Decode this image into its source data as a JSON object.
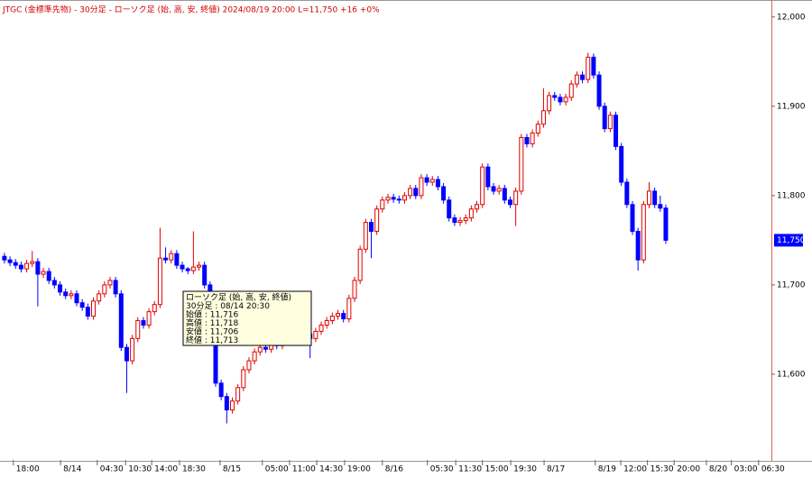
{
  "chart_data": {
    "type": "candlestick",
    "title": "JTGC (金標準先物) - 30分足 - ローソク足 (始, 高, 安, 終値)  2024/08/19 20:00 L=11,750 +16 +0%",
    "up_color": "#e00000",
    "down_color": "#0000ff",
    "open": [
      11732,
      11728,
      11725,
      11722,
      11718,
      11724,
      11726,
      11712,
      11715,
      11705,
      11700,
      11692,
      11688,
      11690,
      11680,
      11675,
      11665,
      11682,
      11690,
      11700,
      11705,
      11690,
      11630,
      11615,
      11640,
      11660,
      11655,
      11670,
      11678,
      11730,
      11728,
      11735,
      11722,
      11718,
      11716,
      11720,
      11722,
      11700,
      11640,
      11590,
      11575,
      11560,
      11570,
      11585,
      11605,
      11615,
      11625,
      11630,
      11628,
      11635,
      11632,
      11638,
      11640,
      11642,
      11640,
      11645,
      11640,
      11648,
      11655,
      11660,
      11665,
      11668,
      11662,
      11685,
      11705,
      11740,
      11770,
      11760,
      11785,
      11795,
      11798,
      11796,
      11795,
      11800,
      11808,
      11800,
      11820,
      11815,
      11818,
      11810,
      11795,
      11775,
      11770,
      11772,
      11775,
      11785,
      11790,
      11832,
      11810,
      11805,
      11808,
      11795,
      11790,
      11805,
      11865,
      11858,
      11870,
      11880,
      11895,
      11912,
      11910,
      11905,
      11910,
      11925,
      11935,
      11930,
      11955,
      11935,
      11900,
      11875,
      11890,
      11855,
      11815,
      11790,
      11760,
      11728,
      11790,
      11805,
      11790,
      11786
    ],
    "high": [
      11736,
      11732,
      11729,
      11726,
      11728,
      11738,
      11730,
      11719,
      11719,
      11709,
      11704,
      11696,
      11694,
      11694,
      11684,
      11679,
      11686,
      11694,
      11704,
      11709,
      11709,
      11694,
      11634,
      11644,
      11664,
      11664,
      11674,
      11682,
      11764,
      11742,
      11739,
      11739,
      11726,
      11720,
      11760,
      11726,
      11726,
      11704,
      11644,
      11594,
      11579,
      11574,
      11589,
      11609,
      11619,
      11629,
      11634,
      11634,
      11639,
      11639,
      11642,
      11644,
      11646,
      11646,
      11649,
      11649,
      11652,
      11659,
      11664,
      11669,
      11672,
      11672,
      11689,
      11709,
      11744,
      11774,
      11774,
      11789,
      11799,
      11802,
      11802,
      11800,
      11804,
      11812,
      11812,
      11824,
      11824,
      11822,
      11822,
      11814,
      11799,
      11779,
      11776,
      11779,
      11789,
      11794,
      11836,
      11836,
      11814,
      11812,
      11812,
      11799,
      11809,
      11869,
      11869,
      11874,
      11884,
      11920,
      11916,
      11916,
      11914,
      11914,
      11929,
      11939,
      11939,
      11960,
      11959,
      11939,
      11904,
      11894,
      11894,
      11859,
      11819,
      11794,
      11764,
      11794,
      11815,
      11809,
      11800,
      11790
    ],
    "low": [
      11724,
      11721,
      11718,
      11714,
      11714,
      11720,
      11676,
      11708,
      11701,
      11696,
      11688,
      11684,
      11684,
      11676,
      11671,
      11661,
      11661,
      11678,
      11686,
      11696,
      11686,
      11626,
      11579,
      11611,
      11636,
      11651,
      11651,
      11666,
      11674,
      11724,
      11724,
      11718,
      11714,
      11712,
      11712,
      11716,
      11696,
      11636,
      11586,
      11571,
      11545,
      11556,
      11566,
      11581,
      11601,
      11611,
      11621,
      11624,
      11624,
      11628,
      11628,
      11634,
      11636,
      11636,
      11636,
      11618,
      11636,
      11644,
      11651,
      11656,
      11661,
      11658,
      11658,
      11681,
      11701,
      11736,
      11730,
      11756,
      11781,
      11791,
      11792,
      11791,
      11791,
      11796,
      11796,
      11796,
      11811,
      11811,
      11806,
      11791,
      11771,
      11766,
      11766,
      11768,
      11771,
      11781,
      11786,
      11806,
      11801,
      11801,
      11791,
      11786,
      11766,
      11801,
      11854,
      11854,
      11866,
      11876,
      11891,
      11906,
      11901,
      11901,
      11906,
      11921,
      11926,
      11926,
      11931,
      11896,
      11871,
      11871,
      11851,
      11811,
      11786,
      11756,
      11716,
      11724,
      11786,
      11786,
      11782,
      11746
    ],
    "close": [
      11728,
      11725,
      11722,
      11718,
      11724,
      11726,
      11712,
      11715,
      11705,
      11700,
      11692,
      11688,
      11690,
      11680,
      11675,
      11665,
      11682,
      11690,
      11700,
      11705,
      11690,
      11630,
      11615,
      11640,
      11660,
      11655,
      11670,
      11678,
      11730,
      11728,
      11735,
      11722,
      11718,
      11716,
      11720,
      11722,
      11700,
      11640,
      11590,
      11575,
      11560,
      11570,
      11585,
      11605,
      11615,
      11625,
      11630,
      11628,
      11635,
      11632,
      11638,
      11640,
      11642,
      11640,
      11645,
      11640,
      11648,
      11655,
      11660,
      11665,
      11668,
      11662,
      11685,
      11705,
      11740,
      11770,
      11760,
      11785,
      11795,
      11798,
      11796,
      11795,
      11800,
      11808,
      11800,
      11820,
      11815,
      11818,
      11810,
      11795,
      11775,
      11770,
      11772,
      11775,
      11785,
      11790,
      11832,
      11810,
      11805,
      11808,
      11795,
      11790,
      11805,
      11865,
      11858,
      11870,
      11880,
      11895,
      11912,
      11910,
      11905,
      11910,
      11925,
      11935,
      11930,
      11955,
      11935,
      11900,
      11875,
      11890,
      11855,
      11815,
      11790,
      11760,
      11728,
      11790,
      11805,
      11790,
      11786,
      11750
    ],
    "xlim": [
      -0.8,
      138
    ],
    "xticks": [
      {
        "value": 1.6,
        "label": "18:00"
      },
      {
        "value": 10.1,
        "label": "8/14"
      },
      {
        "value": 16.7,
        "label": "04:30"
      },
      {
        "value": 21.8,
        "label": "10:30"
      },
      {
        "value": 26.5,
        "label": "14:00"
      },
      {
        "value": 31.5,
        "label": "18:30"
      },
      {
        "value": 38.8,
        "label": "8/15"
      },
      {
        "value": 46.4,
        "label": "05:00"
      },
      {
        "value": 51.3,
        "label": "11:00"
      },
      {
        "value": 56.2,
        "label": "14:30"
      },
      {
        "value": 61.2,
        "label": "19:00"
      },
      {
        "value": 68,
        "label": "8/16"
      },
      {
        "value": 76.1,
        "label": "05:30"
      },
      {
        "value": 81.2,
        "label": "11:30"
      },
      {
        "value": 86,
        "label": "15:00"
      },
      {
        "value": 91.1,
        "label": "19:30"
      },
      {
        "value": 97.1,
        "label": "8/17"
      },
      {
        "value": 106.3,
        "label": "8/19"
      },
      {
        "value": 110.9,
        "label": "12:00"
      },
      {
        "value": 115.7,
        "label": "15:30"
      },
      {
        "value": 120.5,
        "label": "20:00"
      },
      {
        "value": 126.3,
        "label": "8/20"
      },
      {
        "value": 130.8,
        "label": "03:00"
      },
      {
        "value": 135.7,
        "label": "06:30"
      }
    ],
    "ylim": [
      11504,
      12019
    ],
    "yticks": [
      {
        "value": 11600,
        "label": "11,600"
      },
      {
        "value": 11700,
        "label": "11,700"
      },
      {
        "value": 11800,
        "label": "11,800"
      },
      {
        "value": 11900,
        "label": "11,900"
      },
      {
        "value": 12000,
        "label": "12,000"
      }
    ],
    "last_label": {
      "value": 11750,
      "label": "11,750"
    },
    "tooltip": [
      "ローソク足 (始, 高, 安, 終値)",
      "30分足 : 08/14 20:30",
      "始値 : 11,716",
      "高値 : 11,718",
      "安値 : 11,706",
      "終値 : 11,713"
    ]
  }
}
